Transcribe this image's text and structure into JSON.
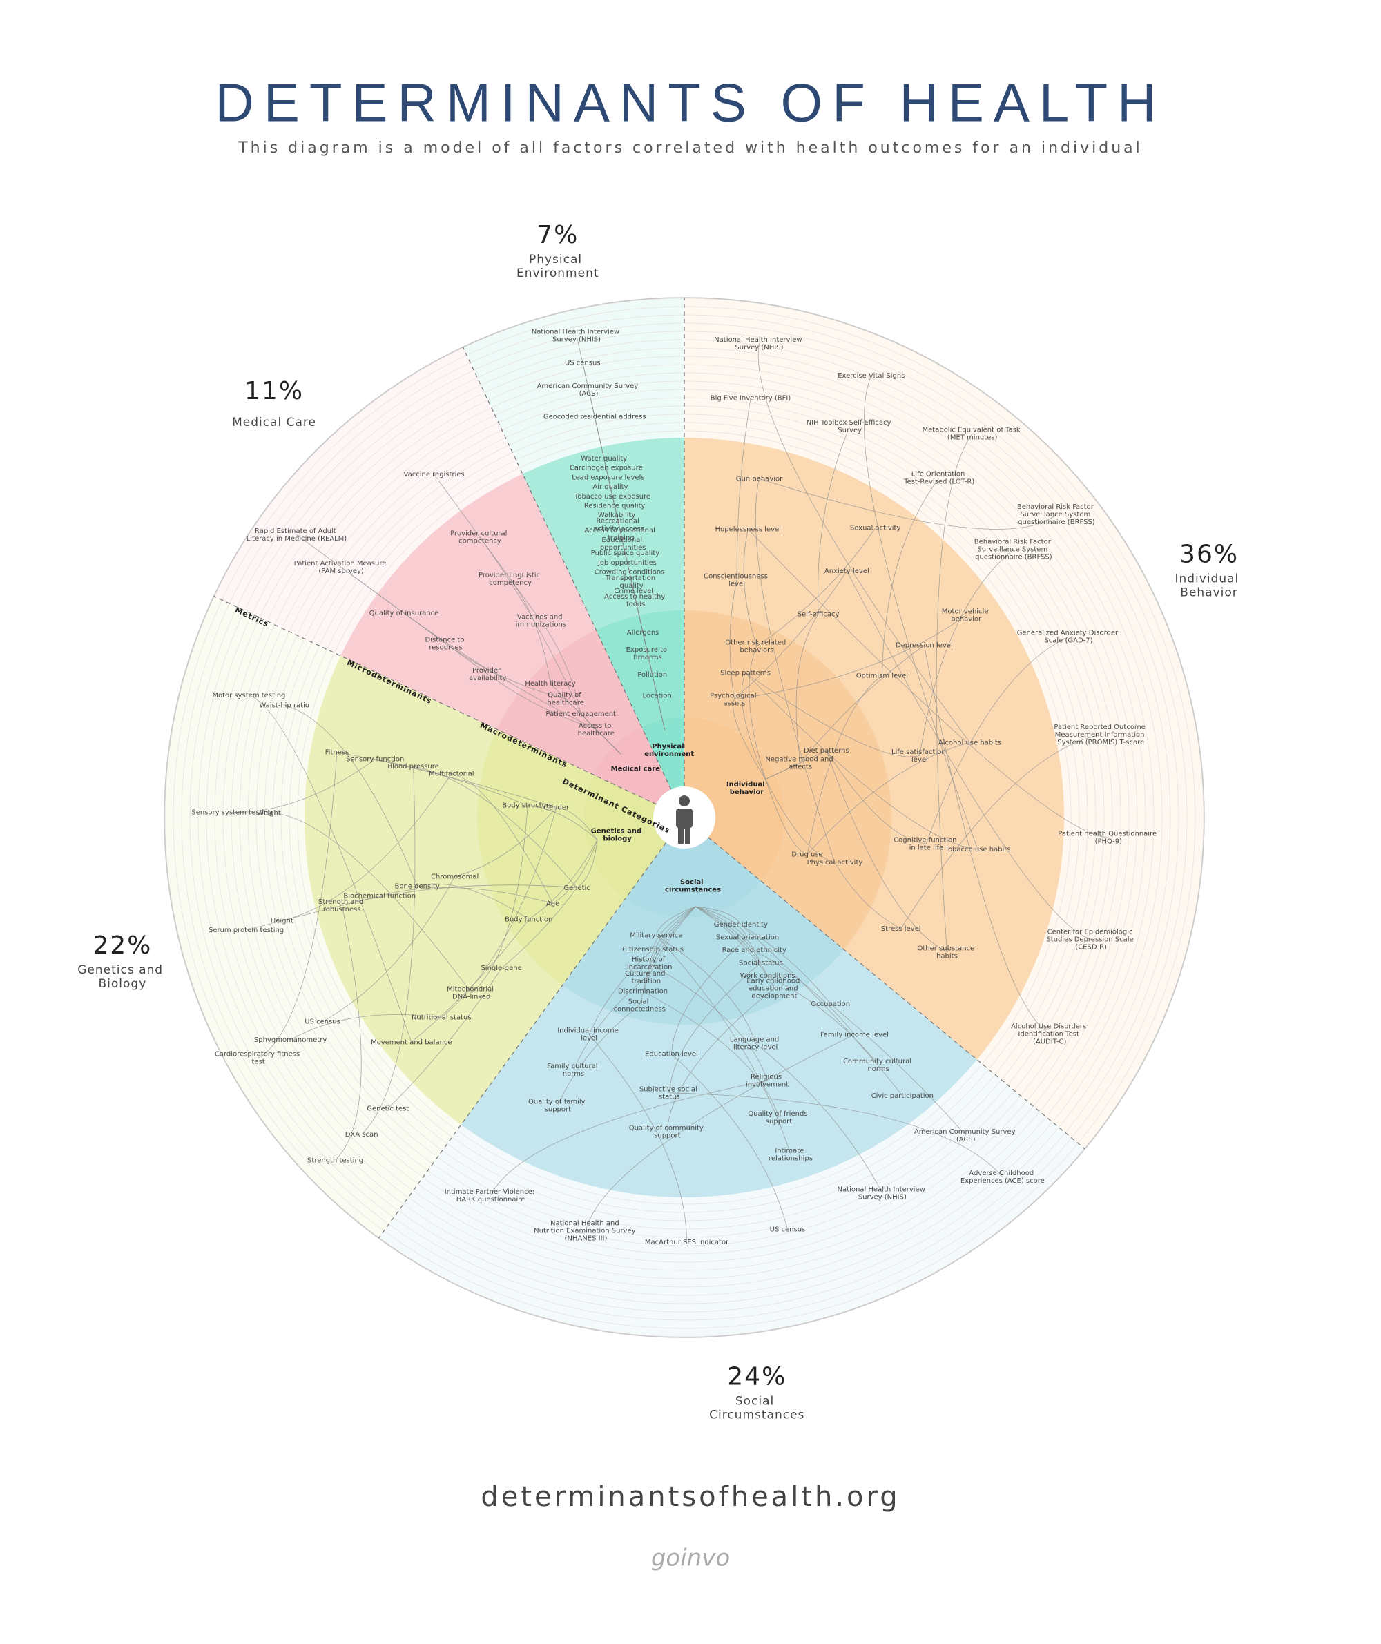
{
  "chart_data": {
    "type": "pie",
    "title": "DETERMINANTS OF HEALTH",
    "subtitle": "This diagram is a model of all factors correlated with health outcomes for an individual",
    "categories": [
      "Individual Behavior",
      "Social Circumstances",
      "Genetics and Biology",
      "Medical Care",
      "Physical Environment"
    ],
    "values": [
      36,
      24,
      22,
      11,
      7
    ],
    "value_labels": [
      "36%",
      "24%",
      "22%",
      "11%",
      "7%"
    ],
    "colors": [
      "#f7b66e",
      "#8fd0df",
      "#d9e27a",
      "#f2a0ab",
      "#5ed9bd"
    ],
    "ring_labels": [
      "Metrics",
      "Microdeterminants",
      "Macrodeterminants",
      "Determinant Categories"
    ],
    "segments": [
      {
        "center_label": "Individual behavior",
        "macro": [
          "Psychological assets",
          "Negative mood and affects",
          "Drug use",
          "Sleep patterns",
          "Diet patterns",
          "Physical activity",
          "Other risk related behaviors"
        ],
        "micro": [
          "Conscientiousness level",
          "Self-efficacy",
          "Optimism level",
          "Life satisfaction level",
          "Cognitive function in late life",
          "Stress level",
          "Hopelessness level",
          "Anxiety level",
          "Depression level",
          "Alcohol use habits",
          "Tobacco use habits",
          "Other substance habits",
          "Gun behavior",
          "Sexual activity",
          "Motor vehicle behavior"
        ],
        "metrics": [
          "Big Five Inventory (BFI)",
          "NIH Toolbox Self-Efficacy Survey",
          "Life Orientation Test-Revised (LOT-R)",
          "Behavioral Risk Factor Surveillance System questionnaire (BRFSS)",
          "Generalized Anxiety Disorder Scale (GAD-7)",
          "Patient Reported Outcome Measurement Information System (PROMIS) T-score",
          "Patient health Questionnaire (PHQ-9)",
          "Center for Epidemiologic Studies Depression Scale (CESD-R)",
          "Alcohol Use Disorders Identification Test (AUDIT-C)",
          "National Health Interview Survey (NHIS)",
          "Exercise Vital Signs",
          "Metabolic Equivalent of Task (MET minutes)",
          "Behavioral Risk Factor Surveillance System questionnaire (BRFSS)"
        ]
      },
      {
        "center_label": "Social circumstances",
        "macro": [
          "Gender identity",
          "Military service",
          "Sexual orientation",
          "Citizenship status",
          "Race and ethnicity",
          "History of incarceration",
          "Social status",
          "Culture and tradition",
          "Work conditions",
          "Discrimination",
          "Early childhood education and development",
          "Social connectedness"
        ],
        "micro": [
          "Occupation",
          "Language and literacy level",
          "Education level",
          "Individual income level",
          "Family income level",
          "Religious involvement",
          "Subjective social status",
          "Family cultural norms",
          "Community cultural norms",
          "Quality of friends support",
          "Quality of community support",
          "Quality of family support",
          "Civic participation",
          "Intimate relationships"
        ],
        "metrics": [
          "American Community Survey (ACS)",
          "National Health Interview Survey (NHIS)",
          "US census",
          "MacArthur SES indicator",
          "National Health and Nutrition Examination Survey (NHANES III)",
          "Intimate Partner Violence: HARK questionnaire",
          "Adverse Childhood Experiences (ACE) score"
        ]
      },
      {
        "center_label": "Genetics and biology",
        "macro": [
          "Genetic",
          "Gender",
          "Age",
          "Body structure",
          "Body function"
        ],
        "micro": [
          "Single-gene",
          "Chromosomal",
          "Multifactorial",
          "Mitochondrial DNA-linked",
          "Bone density",
          "Blood pressure",
          "Nutritional status",
          "Biochemical function",
          "Sensory function",
          "Movement and balance",
          "Strength and robustness",
          "Fitness"
        ],
        "metrics": [
          "Genetic test",
          "US census",
          "Height",
          "Weight",
          "Waist-hip ratio",
          "DXA scan",
          "Sphygmomanometry",
          "Serum protein testing",
          "Sensory system testing",
          "Motor system testing",
          "Strength testing",
          "Cardiorespiratory fitness test"
        ]
      },
      {
        "center_label": "Medical care",
        "macro": [
          "Access to healthcare",
          "Patient engagement",
          "Quality of healthcare",
          "Health literacy"
        ],
        "micro": [
          "Provider availability",
          "Vaccines and immunizations",
          "Distance to resources",
          "Provider linguistic competency",
          "Quality of insurance",
          "Provider cultural competency"
        ],
        "metrics": [
          "Patient Activation Measure (PAM survey)",
          "Vaccine registries",
          "Rapid Estimate of Adult Literacy in Medicine (REALM)"
        ]
      },
      {
        "center_label": "Physical environment",
        "macro": [
          "Location",
          "Pollution",
          "Exposure to firearms",
          "Allergens"
        ],
        "micro": [
          "Access to healthy foods",
          "Crime level",
          "Transportation quality",
          "Crowding conditions",
          "Job opportunities",
          "Public space quality",
          "Educational opportunities",
          "Access to vocational training",
          "Recreational activity access",
          "Walkability",
          "Residence quality",
          "Tobacco use exposure",
          "Air quality",
          "Lead exposure levels",
          "Carcinogen exposure",
          "Water quality"
        ],
        "metrics": [
          "Geocoded residential address",
          "American Community Survey (ACS)",
          "US census",
          "National Health Interview Survey (NHIS)"
        ]
      }
    ]
  },
  "footer": {
    "url": "determinantsofhealth.org",
    "brand": "goinvo"
  }
}
